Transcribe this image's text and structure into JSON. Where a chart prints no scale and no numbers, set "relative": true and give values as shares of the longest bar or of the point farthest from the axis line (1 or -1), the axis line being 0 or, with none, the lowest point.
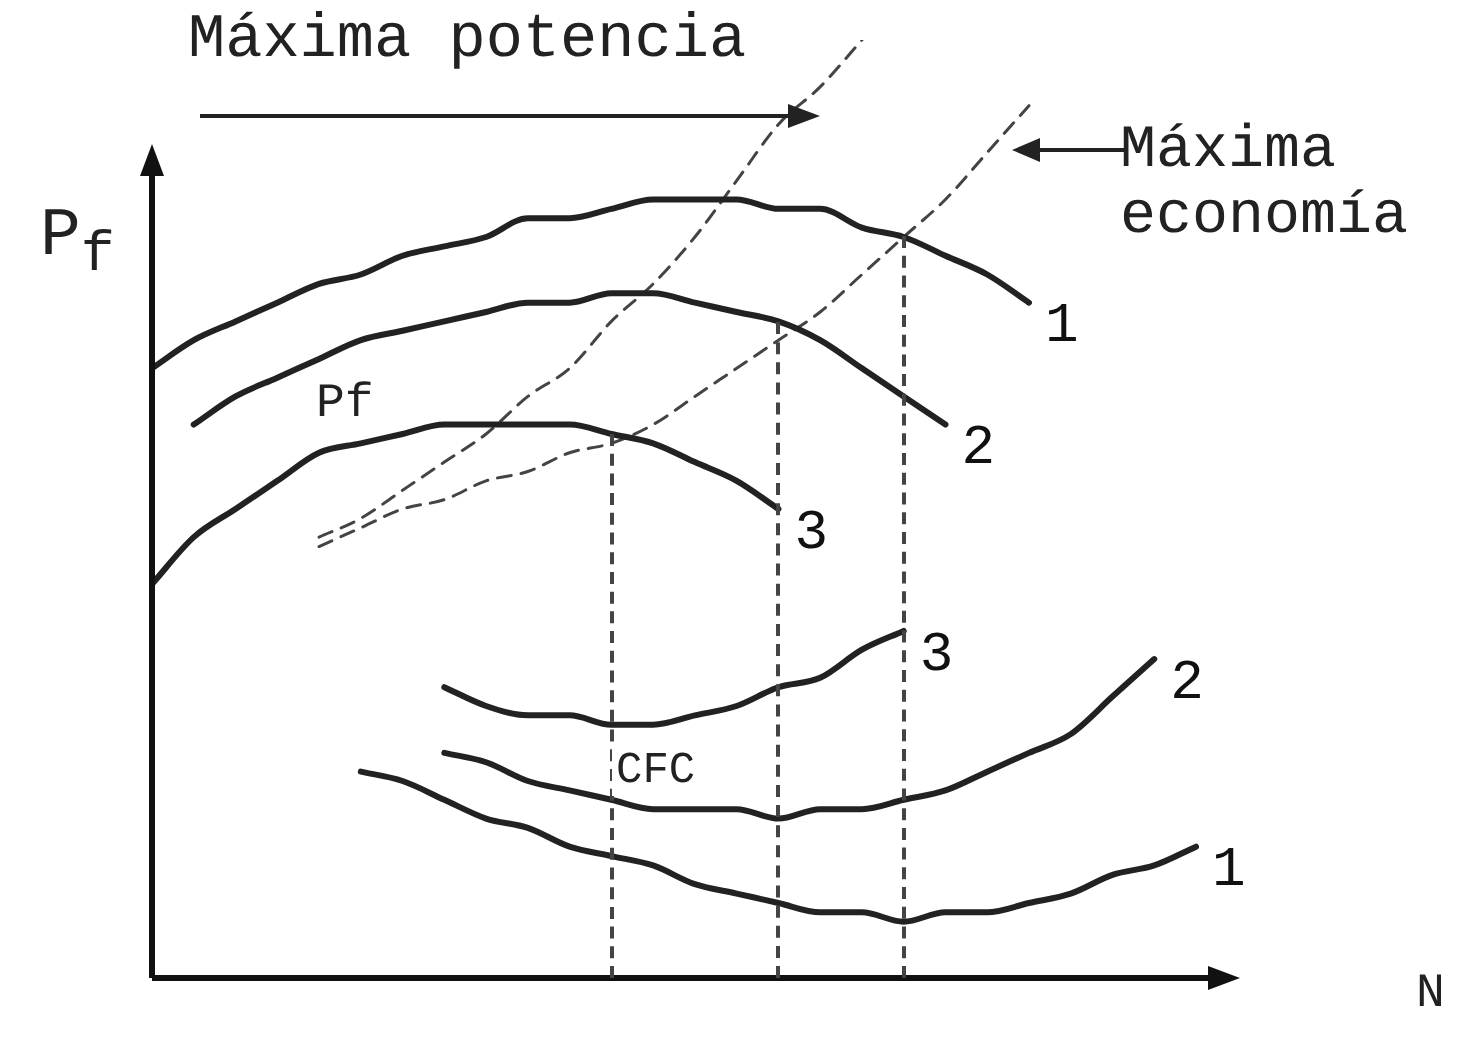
{
  "chart_data": {
    "type": "line",
    "relative": true,
    "xlabel": "N",
    "ylabel": "P$_{f}$",
    "legend": false,
    "marker": "none",
    "annotations": [
      "Máxima potencia",
      "Máxima economía",
      "Pf",
      "CFC"
    ],
    "categories": [
      null,
      null,
      null,
      null,
      null,
      null,
      null,
      null,
      null,
      null,
      null,
      null,
      null,
      null,
      null,
      null,
      null,
      null,
      null,
      null,
      null,
      null,
      null,
      null,
      null,
      null
    ],
    "series": [
      {
        "name": "1",
        "color": "#222222",
        "line_style": "solid",
        "values": [
          0.65,
          0.68,
          0.7,
          0.72,
          0.74,
          0.75,
          0.77,
          0.78,
          0.79,
          0.81,
          0.81,
          0.82,
          0.83,
          0.83,
          0.83,
          0.82,
          0.82,
          0.8,
          0.79,
          0.77,
          0.75,
          0.72,
          null,
          null,
          null,
          null
        ]
      },
      {
        "name": "2",
        "color": "#222222",
        "line_style": "solid",
        "values": [
          null,
          0.59,
          0.62,
          0.64,
          0.66,
          0.68,
          0.69,
          0.7,
          0.71,
          0.72,
          0.72,
          0.73,
          0.73,
          0.72,
          0.71,
          0.7,
          0.68,
          0.65,
          0.62,
          0.59,
          null,
          null,
          null,
          null,
          null,
          null
        ]
      },
      {
        "name": "3",
        "color": "#222222",
        "line_style": "solid",
        "values": [
          0.42,
          0.47,
          0.5,
          0.53,
          0.56,
          0.57,
          0.58,
          0.59,
          0.59,
          0.59,
          0.59,
          0.58,
          0.57,
          0.55,
          0.53,
          0.5,
          null,
          null,
          null,
          null,
          null,
          null,
          null,
          null,
          null,
          null
        ]
      },
      {
        "name": "3",
        "color": "#222222",
        "line_style": "solid",
        "values": [
          null,
          null,
          null,
          null,
          null,
          null,
          null,
          0.31,
          0.29,
          0.28,
          0.28,
          0.27,
          0.27,
          0.28,
          0.29,
          0.31,
          0.32,
          0.35,
          0.37,
          null,
          null,
          null,
          null,
          null,
          null,
          null
        ]
      },
      {
        "name": "2",
        "color": "#222222",
        "line_style": "solid",
        "values": [
          null,
          null,
          null,
          null,
          null,
          null,
          null,
          0.24,
          0.23,
          0.21,
          0.2,
          0.19,
          0.18,
          0.18,
          0.18,
          0.17,
          0.18,
          0.18,
          0.19,
          0.2,
          0.22,
          0.24,
          0.26,
          0.3,
          0.34,
          null
        ]
      },
      {
        "name": "1",
        "color": "#222222",
        "line_style": "solid",
        "values": [
          null,
          null,
          null,
          null,
          null,
          0.22,
          0.21,
          0.19,
          0.17,
          0.16,
          0.14,
          0.13,
          0.12,
          0.1,
          0.09,
          0.08,
          0.07,
          0.07,
          0.06,
          0.07,
          0.07,
          0.08,
          0.09,
          0.11,
          0.12,
          0.14
        ]
      },
      {
        "color": "#444444",
        "line_style": "dashed",
        "values": [
          null,
          null,
          null,
          null,
          0.47,
          0.49,
          0.52,
          0.55,
          0.58,
          0.62,
          0.65,
          0.7,
          0.74,
          0.79,
          0.85,
          0.91,
          0.95,
          1.0,
          null,
          null,
          null,
          null,
          null,
          null,
          null,
          null
        ]
      },
      {
        "color": "#444444",
        "line_style": "dashed",
        "values": [
          null,
          null,
          null,
          null,
          0.46,
          0.48,
          0.5,
          0.51,
          0.53,
          0.54,
          0.56,
          0.57,
          0.59,
          0.62,
          0.65,
          0.68,
          0.71,
          0.75,
          0.79,
          0.83,
          0.88,
          0.93,
          null,
          null,
          null,
          null
        ]
      }
    ]
  }
}
